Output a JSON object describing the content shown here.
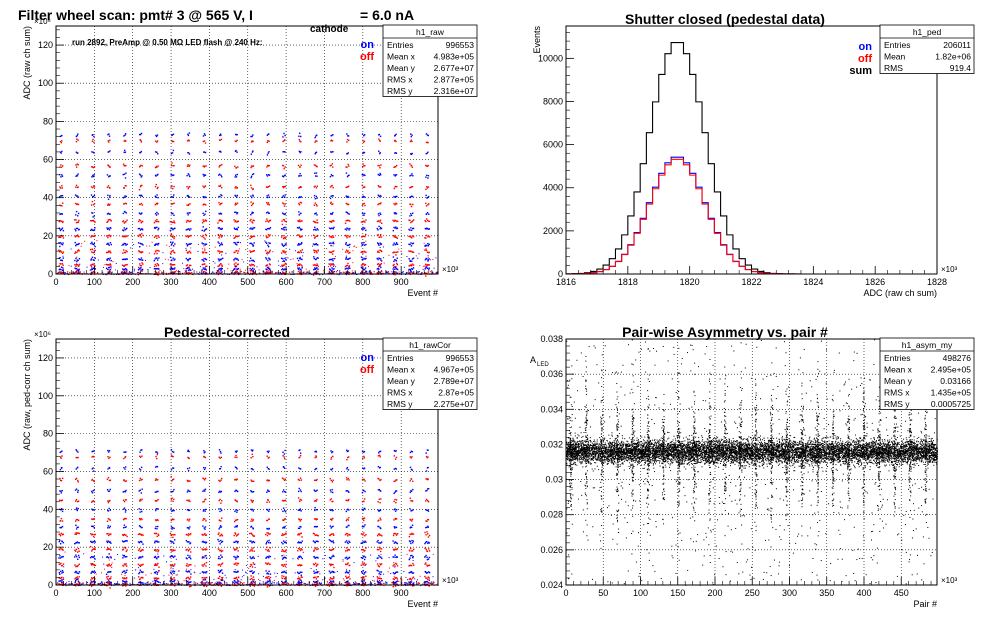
{
  "chart_data": [
    {
      "type": "scatter",
      "title": "Filter wheel scan: pmt#   3 @   565 V, I",
      "title_sub": "cathode",
      "title_tail": " = 6.0 nA",
      "annotation": "run 2892, PreAmp @ 0.50 MΩ  LED flash @  240 Hz:",
      "xlabel": "Event #",
      "ylabel": "ADC (raw ch sum)",
      "x_exp": "×10³",
      "y_exp": "×10⁶",
      "xlim": [
        0,
        996
      ],
      "ylim": [
        0,
        130
      ],
      "xticks": [
        0,
        100,
        200,
        300,
        400,
        500,
        600,
        700,
        800,
        900
      ],
      "yticks": [
        0,
        20,
        40,
        60,
        80,
        100,
        120
      ],
      "grid": true,
      "legend": [
        {
          "label": "on",
          "color": "#0000ff"
        },
        {
          "label": "off",
          "color": "#ff0000"
        }
      ],
      "stats": {
        "name": "h1_raw",
        "rows": [
          [
            "Entries",
            "996553"
          ],
          [
            "Mean x",
            "4.983e+05"
          ],
          [
            "Mean y",
            "2.677e+07"
          ],
          [
            "RMS x",
            "2.877e+05"
          ],
          [
            "RMS y",
            "2.316e+07"
          ]
        ]
      },
      "levels": [
        73,
        70,
        64,
        57,
        52,
        46,
        41,
        37,
        32,
        28,
        24,
        20,
        16,
        12,
        8,
        5,
        3,
        1
      ],
      "period": 41.5,
      "offset": 12
    },
    {
      "type": "line",
      "title": "Shutter closed (pedestal data)",
      "xlabel": "ADC (raw ch sum)",
      "ylabel": "Events",
      "x_exp": "×10³",
      "xlim": [
        1816,
        1828
      ],
      "ylim": [
        0,
        11500
      ],
      "xticks": [
        1816,
        1818,
        1820,
        1822,
        1824,
        1826,
        1828
      ],
      "yticks": [
        0,
        2000,
        4000,
        6000,
        8000,
        10000
      ],
      "grid": false,
      "legend": [
        {
          "label": "on",
          "color": "#0000ff"
        },
        {
          "label": "off",
          "color": "#ff0000"
        },
        {
          "label": "sum",
          "color": "#000000"
        }
      ],
      "stats": {
        "name": "h1_ped",
        "rows": [
          [
            "Entries",
            "206011"
          ],
          [
            "Mean",
            "1.82e+06"
          ],
          [
            "RMS",
            "919.4"
          ]
        ]
      },
      "series": [
        {
          "name": "sum",
          "color": "#000000",
          "mean": 1819.6,
          "sigma": 0.9,
          "peak": 10800
        },
        {
          "name": "on",
          "color": "#0000ff",
          "mean": 1819.6,
          "sigma": 0.9,
          "peak": 5450
        },
        {
          "name": "off",
          "color": "#ff0000",
          "mean": 1819.6,
          "sigma": 0.9,
          "peak": 5350
        }
      ]
    },
    {
      "type": "scatter",
      "title": "Pedestal-corrected",
      "xlabel": "Event #",
      "ylabel": "ADC (raw, ped-corr ch sum)",
      "x_exp": "×10³",
      "y_exp": "×10⁶",
      "xlim": [
        0,
        996
      ],
      "ylim": [
        0,
        130
      ],
      "xticks": [
        0,
        100,
        200,
        300,
        400,
        500,
        600,
        700,
        800,
        900
      ],
      "yticks": [
        0,
        20,
        40,
        60,
        80,
        100,
        120
      ],
      "grid": true,
      "legend": [
        {
          "label": "on",
          "color": "#0000ff"
        },
        {
          "label": "off",
          "color": "#ff0000"
        }
      ],
      "stats": {
        "name": "h1_rawCor",
        "rows": [
          [
            "Entries",
            "996553"
          ],
          [
            "Mean x",
            "4.967e+05"
          ],
          [
            "Mean y",
            "2.789e+07"
          ],
          [
            "RMS x",
            "2.87e+05"
          ],
          [
            "RMS y",
            "2.275e+07"
          ]
        ]
      },
      "levels": [
        71,
        68,
        62,
        56,
        50,
        45,
        40,
        35,
        31,
        27,
        23,
        19,
        15,
        11,
        7,
        4,
        2,
        0.5
      ],
      "period": 41.5,
      "offset": 12
    },
    {
      "type": "scatter",
      "title": "Pair-wise Asymmetry vs. pair #",
      "xlabel": "Pair #",
      "ylabel": "A_LED",
      "x_exp": "×10³",
      "xlim": [
        0,
        498
      ],
      "ylim": [
        0.024,
        0.038
      ],
      "xticks": [
        0,
        50,
        100,
        150,
        200,
        250,
        300,
        350,
        400,
        450
      ],
      "yticks": [
        0.024,
        0.026,
        0.028,
        0.03,
        0.032,
        0.034,
        0.036,
        0.038
      ],
      "grid": true,
      "stats": {
        "name": "h1_asym_my",
        "rows": [
          [
            "Entries",
            "498276"
          ],
          [
            "Mean x",
            "2.495e+05"
          ],
          [
            "Mean y",
            "0.03166"
          ],
          [
            "RMS x",
            "1.435e+05"
          ],
          [
            "RMS y",
            "0.0005725"
          ]
        ]
      },
      "band_center": 0.0316,
      "band_halfwidth": 0.0006,
      "spike_period": 20.7,
      "spike_offset": 6
    }
  ]
}
